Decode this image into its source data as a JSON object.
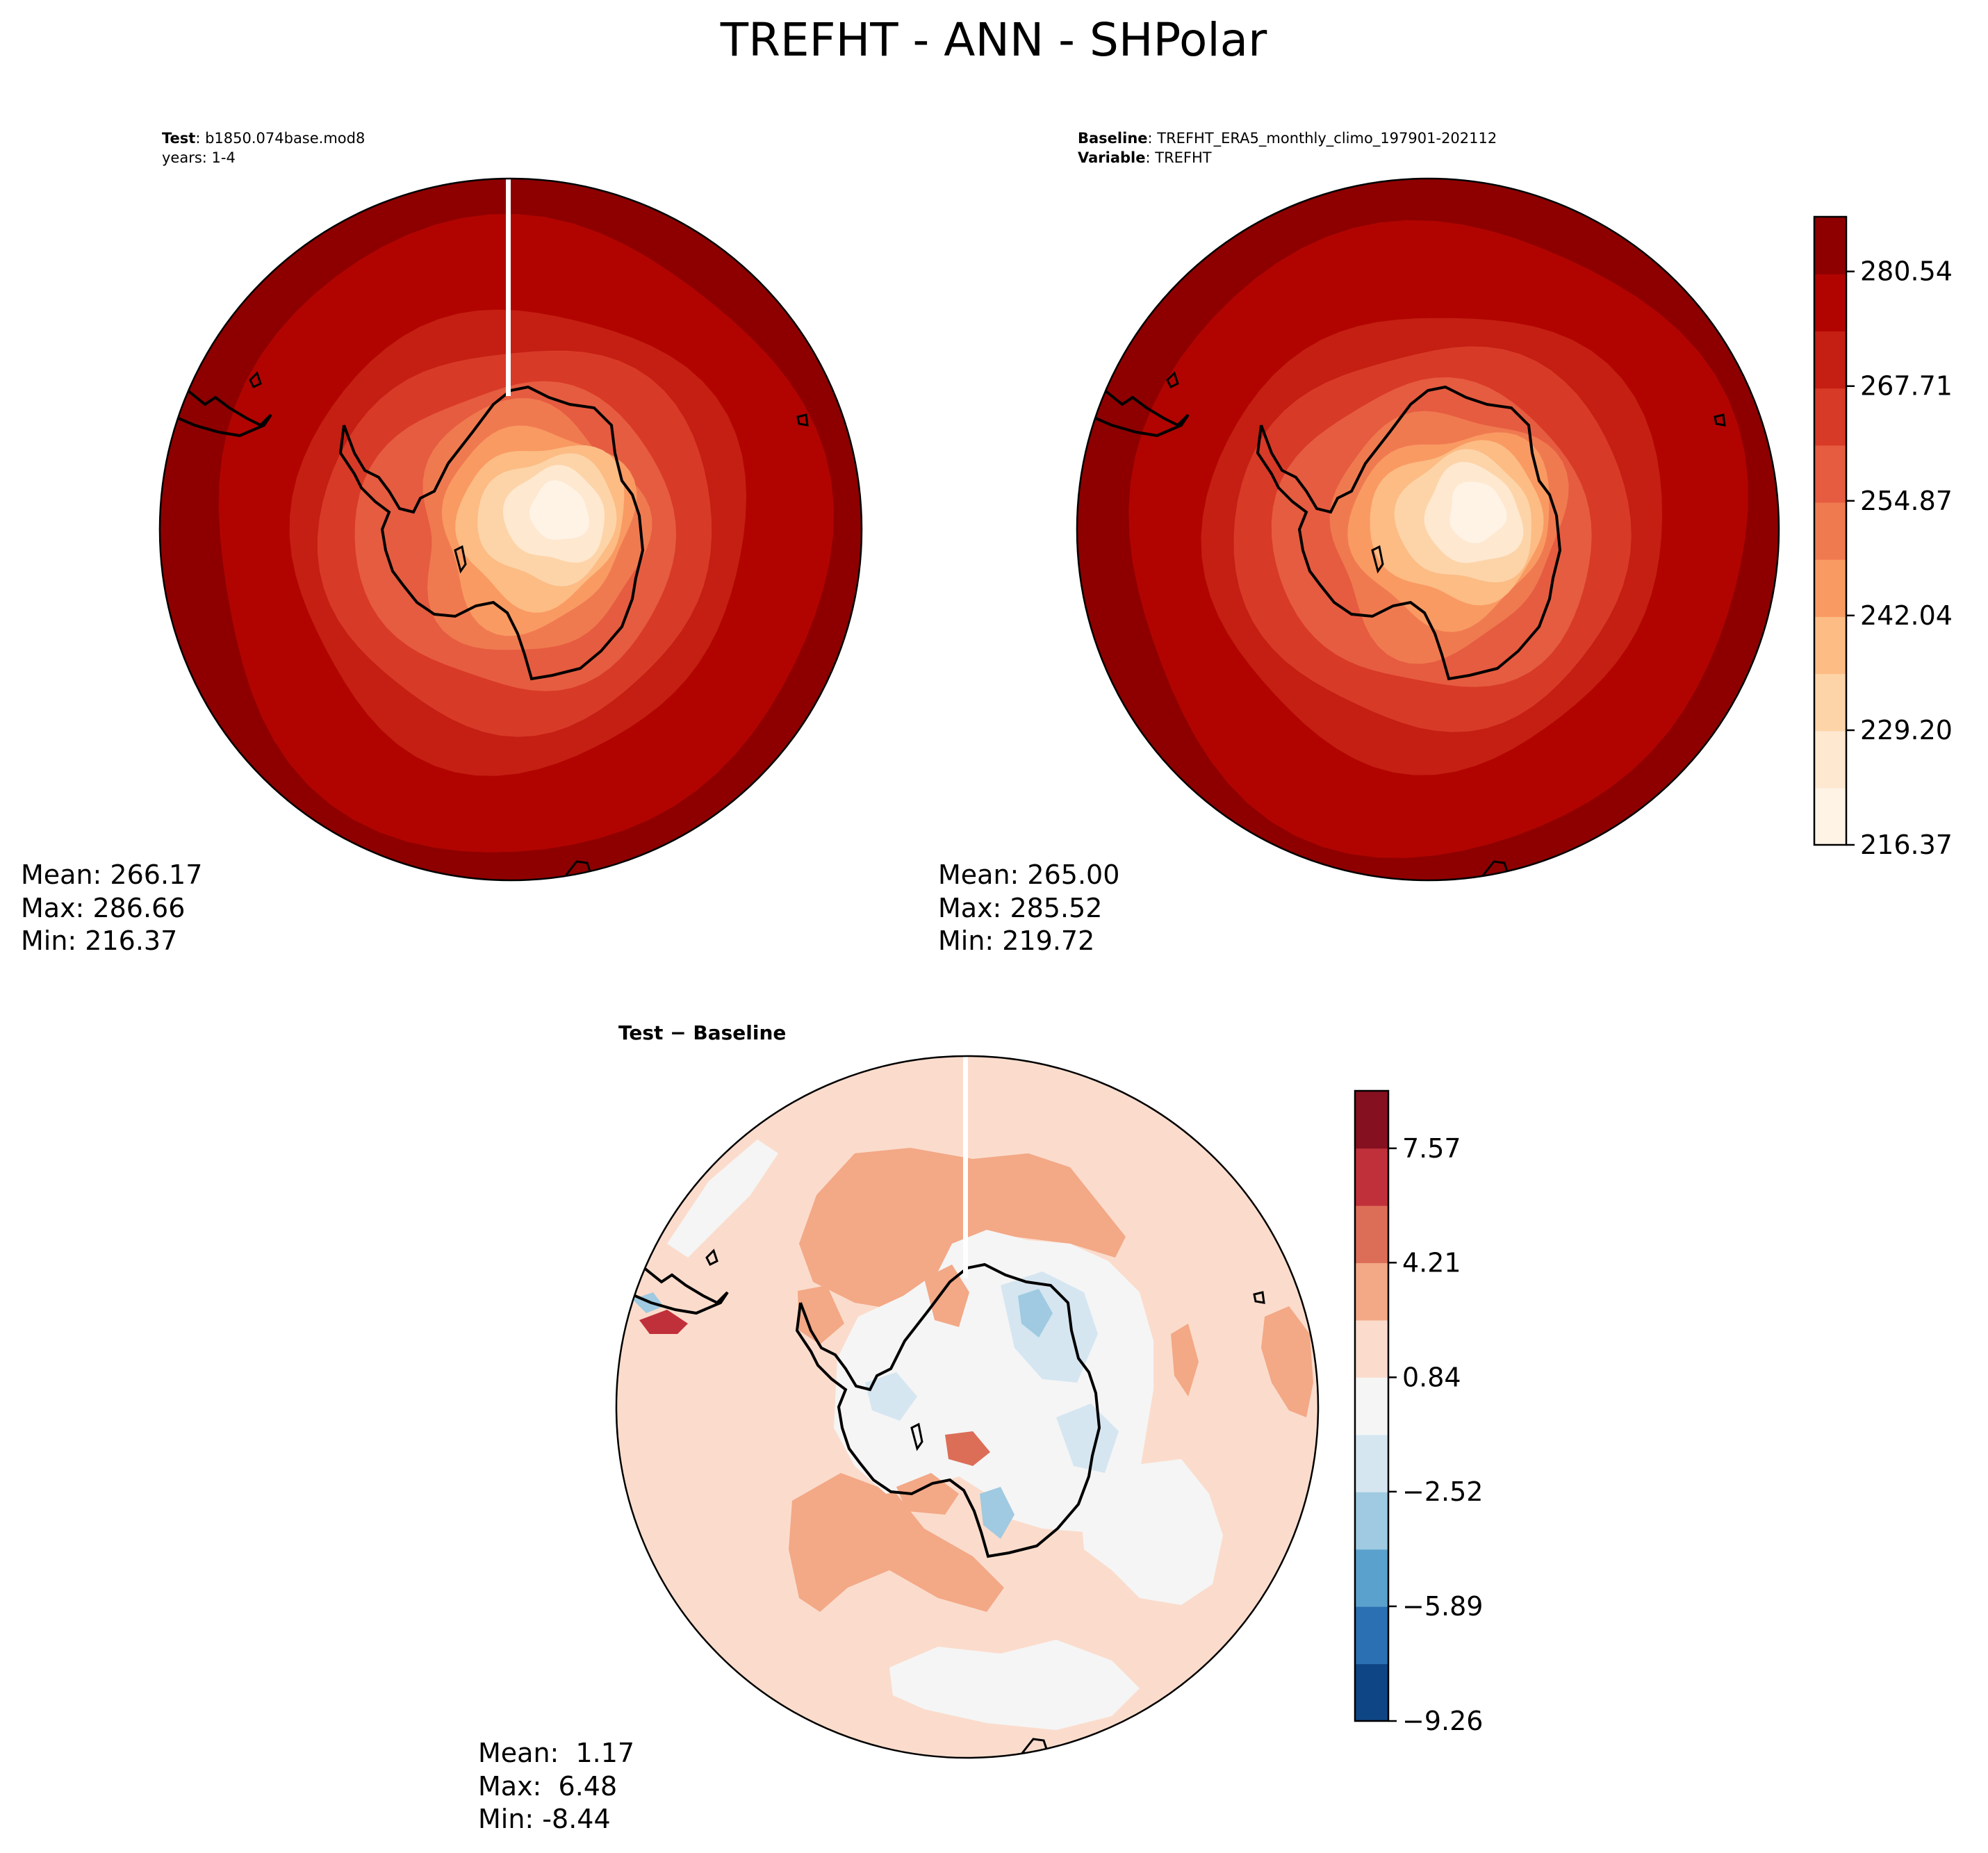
{
  "figure": {
    "title": "TREFHT - ANN - SHPolar"
  },
  "panels": {
    "test": {
      "label_key": "Test",
      "label_value": ": b1850.074base.mod8",
      "sub": "years: 1-4",
      "stats": {
        "mean": "Mean: 266.17",
        "max": "Max: 286.66",
        "min": "Min: 216.37"
      },
      "has_seam": true
    },
    "baseline": {
      "label_key": "Baseline",
      "label_value": ": TREFHT_ERA5_monthly_climo_197901-202112",
      "var_key": "Variable",
      "var_value": ": TREFHT",
      "stats": {
        "mean": "Mean: 265.00",
        "max": "Max: 285.52",
        "min": "Min: 219.72"
      },
      "has_seam": false
    },
    "diff": {
      "title_key": "Test",
      "title_rest": " − Baseline",
      "stats": {
        "mean": "Mean:  1.17",
        "max": "Max:  6.48",
        "min": "Min: -8.44"
      },
      "has_seam": true
    }
  },
  "chart_data": [
    {
      "type": "heatmap",
      "name": "test",
      "projection": "south-polar-stereographic",
      "variable": "TREFHT",
      "mean": 266.17,
      "max": 286.66,
      "min": 216.37,
      "pole_value": 222,
      "edge_value": 285
    },
    {
      "type": "heatmap",
      "name": "baseline",
      "projection": "south-polar-stereographic",
      "variable": "TREFHT",
      "mean": 265.0,
      "max": 285.52,
      "min": 219.72,
      "pole_value": 223,
      "edge_value": 284
    },
    {
      "type": "heatmap",
      "name": "difference",
      "projection": "south-polar-stereographic",
      "mean": 1.17,
      "max": 6.48,
      "min": -8.44,
      "typical_value": 1.6
    }
  ],
  "colorbars": {
    "absolute": {
      "colormap": "OrRd-like",
      "colors": [
        "#fff5eb",
        "#fee6ce",
        "#fdd0a2",
        "#fdae6b",
        "#fd8d3c",
        "#f16913",
        "#e34a33",
        "#d7301f",
        "#c0100a",
        "#b30000",
        "#8b0000"
      ],
      "band_colors": [
        "#fff3e6",
        "#fee8d0",
        "#fdd4a8",
        "#fcbc84",
        "#f99a62",
        "#f07a50",
        "#e65c40",
        "#d83a28",
        "#c41f12",
        "#b10400",
        "#8e0000"
      ],
      "range": [
        216.37,
        286.66
      ],
      "tick_values": [
        216.37,
        229.2,
        242.04,
        254.87,
        267.71,
        280.54
      ],
      "tick_labels": [
        "216.37",
        "229.20",
        "242.04",
        "254.87",
        "267.71",
        "280.54"
      ]
    },
    "difference": {
      "band_colors": [
        "#0e4584",
        "#2a70b2",
        "#5aa1cd",
        "#9fcae1",
        "#d5e6f1",
        "#f5f5f5",
        "#fbdccc",
        "#f3a886",
        "#dc6e58",
        "#c0303a",
        "#85101f"
      ],
      "range": [
        -9.26,
        9.26
      ],
      "tick_values": [
        -9.26,
        -5.89,
        -2.52,
        0.84,
        4.21,
        7.57
      ],
      "tick_labels": [
        "−9.26",
        "−5.89",
        "−2.52",
        "0.84",
        "4.21",
        "7.57"
      ]
    }
  }
}
